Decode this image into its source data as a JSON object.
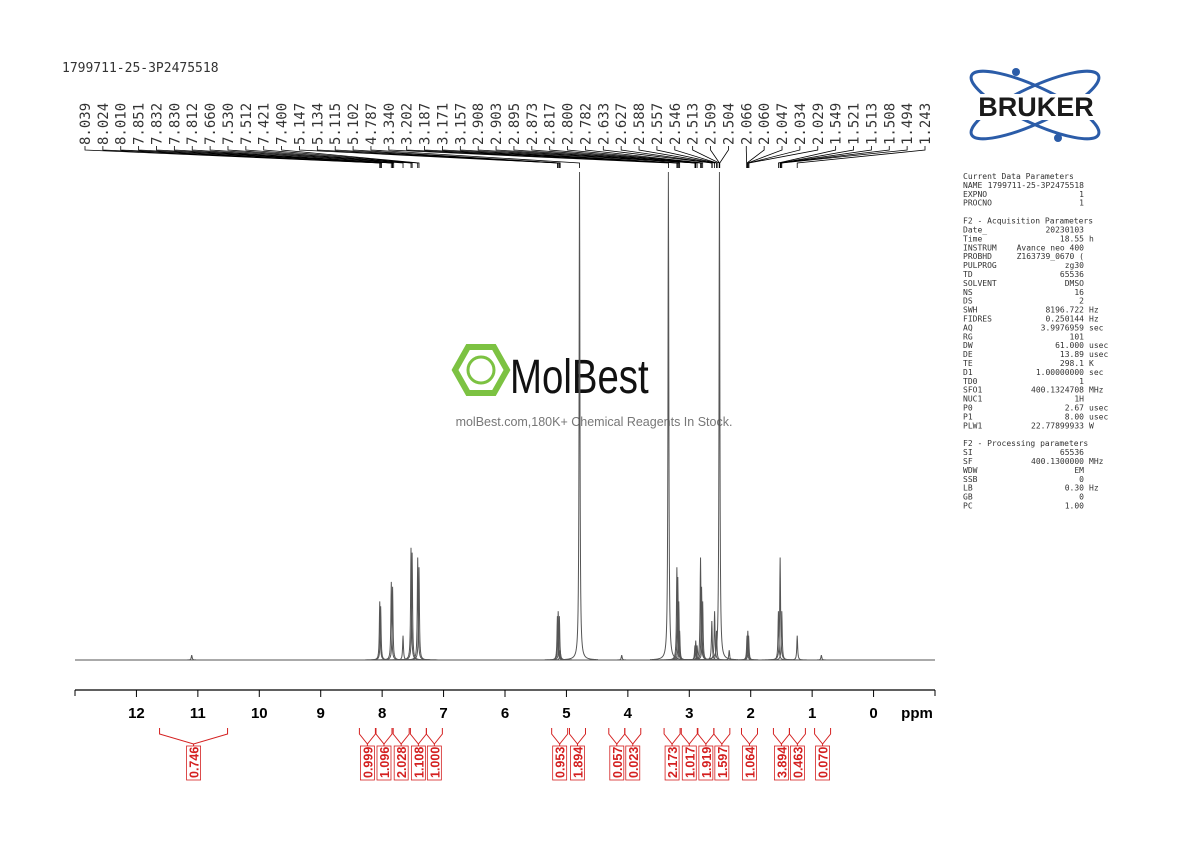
{
  "sample_id": "1799711-25-3P2475518",
  "logo": "BRUKER",
  "watermark": {
    "brand": "MolBest",
    "tagline": "molBest.com,180K+ Chemical Reagents In Stock."
  },
  "parameters": [
    {
      "title": "Current Data Parameters",
      "rows": [
        [
          "NAME",
          "1799711-25-3P2475518",
          ""
        ],
        [
          "EXPNO",
          "1",
          ""
        ],
        [
          "PROCNO",
          "1",
          ""
        ]
      ]
    },
    {
      "title": "F2 - Acquisition Parameters",
      "rows": [
        [
          "Date_",
          "20230103",
          ""
        ],
        [
          "Time",
          "18.55",
          "h"
        ],
        [
          "INSTRUM",
          "Avance neo 400",
          ""
        ],
        [
          "PROBHD",
          "Z163739_0670 (",
          ""
        ],
        [
          "PULPROG",
          "zg30",
          ""
        ],
        [
          "TD",
          "65536",
          ""
        ],
        [
          "SOLVENT",
          "DMSO",
          ""
        ],
        [
          "NS",
          "16",
          ""
        ],
        [
          "DS",
          "2",
          ""
        ],
        [
          "SWH",
          "8196.722",
          "Hz"
        ],
        [
          "FIDRES",
          "0.250144",
          "Hz"
        ],
        [
          "AQ",
          "3.9976959",
          "sec"
        ],
        [
          "RG",
          "101",
          ""
        ],
        [
          "DW",
          "61.000",
          "usec"
        ],
        [
          "DE",
          "13.89",
          "usec"
        ],
        [
          "TE",
          "298.1",
          "K"
        ],
        [
          "D1",
          "1.00000000",
          "sec"
        ],
        [
          "TD0",
          "1",
          ""
        ],
        [
          "SFO1",
          "400.1324708",
          "MHz"
        ],
        [
          "NUC1",
          "1H",
          ""
        ],
        [
          "P0",
          "2.67",
          "usec"
        ],
        [
          "P1",
          "8.00",
          "usec"
        ],
        [
          "PLW1",
          "22.77899933",
          "W"
        ]
      ]
    },
    {
      "title": "F2 - Processing parameters",
      "rows": [
        [
          "SI",
          "65536",
          ""
        ],
        [
          "SF",
          "400.1300000",
          "MHz"
        ],
        [
          "WDW",
          "EM",
          ""
        ],
        [
          "SSB",
          "0",
          ""
        ],
        [
          "LB",
          "0.30",
          "Hz"
        ],
        [
          "GB",
          "0",
          ""
        ],
        [
          "PC",
          "1.00",
          ""
        ]
      ]
    }
  ],
  "chart_data": {
    "type": "nmr",
    "x_label": "ppm",
    "xlim": [
      13,
      -1
    ],
    "xticks": [
      12,
      11,
      10,
      9,
      8,
      7,
      6,
      5,
      4,
      3,
      2,
      1,
      0
    ],
    "color": "#555555",
    "peak_labels": {
      "x": [
        8.039,
        8.024,
        8.01,
        7.851,
        7.832,
        7.83,
        7.812,
        7.66,
        7.53,
        7.512,
        7.421,
        7.4,
        5.147,
        5.134,
        5.115,
        5.102,
        4.787,
        3.34,
        3.202,
        3.187,
        3.171,
        3.157,
        2.908,
        2.903,
        2.895,
        2.873,
        2.817,
        2.8,
        2.782,
        2.633,
        2.627,
        2.588,
        2.557,
        2.546,
        2.513,
        2.509,
        2.504,
        2.066,
        2.06,
        2.047,
        2.034,
        2.029,
        1.549,
        1.521,
        1.513,
        1.508,
        1.494,
        1.243
      ],
      "labels": [
        "8.039",
        "8.024",
        "8.010",
        "7.851",
        "7.832",
        "7.830",
        "7.812",
        "7.660",
        "7.530",
        "7.512",
        "7.421",
        "7.400",
        "5.147",
        "5.134",
        "5.115",
        "5.102",
        "4.787",
        "3.340",
        "3.202",
        "3.187",
        "3.171",
        "3.157",
        "2.908",
        "2.903",
        "2.895",
        "2.873",
        "2.817",
        "2.800",
        "2.782",
        "2.633",
        "2.627",
        "2.588",
        "2.557",
        "2.546",
        "2.513",
        "2.509",
        "2.504",
        "2.066",
        "2.060",
        "2.047",
        "2.034",
        "2.029",
        "1.549",
        "1.521",
        "1.513",
        "1.508",
        "1.494",
        "1.243"
      ]
    },
    "signals": {
      "x": [
        11.1,
        8.039,
        8.024,
        7.851,
        7.83,
        7.66,
        7.53,
        7.512,
        7.421,
        7.4,
        5.147,
        5.134,
        5.115,
        5.102,
        4.787,
        4.1,
        3.34,
        3.202,
        3.187,
        3.171,
        3.157,
        2.908,
        2.895,
        2.873,
        2.817,
        2.8,
        2.782,
        2.633,
        2.588,
        2.557,
        2.509,
        2.35,
        2.06,
        2.047,
        2.034,
        1.549,
        1.521,
        1.494,
        1.243,
        0.85
      ],
      "values": [
        1,
        12,
        11,
        16,
        15,
        5,
        23,
        22,
        21,
        19,
        9,
        10,
        9,
        2,
        100,
        1,
        100,
        19,
        17,
        12,
        6,
        3,
        4,
        3,
        21,
        15,
        12,
        8,
        10,
        6,
        100,
        2,
        5,
        6,
        5,
        10,
        21,
        10,
        5,
        1
      ]
    },
    "integrals": {
      "x": [
        11.07,
        8.24,
        7.97,
        7.69,
        7.41,
        7.15,
        5.11,
        4.82,
        4.18,
        3.92,
        3.28,
        3.0,
        2.73,
        2.47,
        2.02,
        1.5,
        1.24,
        0.83
      ],
      "values": [
        0.746,
        0.999,
        1.096,
        2.028,
        1.108,
        1.0,
        0.953,
        1.894,
        0.057,
        0.023,
        2.173,
        1.017,
        1.919,
        1.597,
        1.064,
        3.894,
        0.463,
        0.07
      ],
      "value_labels": [
        "0.746",
        "0.999",
        "1.096",
        "2.028",
        "1.108",
        "1.000",
        "0.953",
        "1.894",
        "0.057",
        "0.023",
        "2.173",
        "1.017",
        "1.919",
        "1.597",
        "1.064",
        "3.894",
        "0.463",
        "0.070"
      ]
    }
  }
}
